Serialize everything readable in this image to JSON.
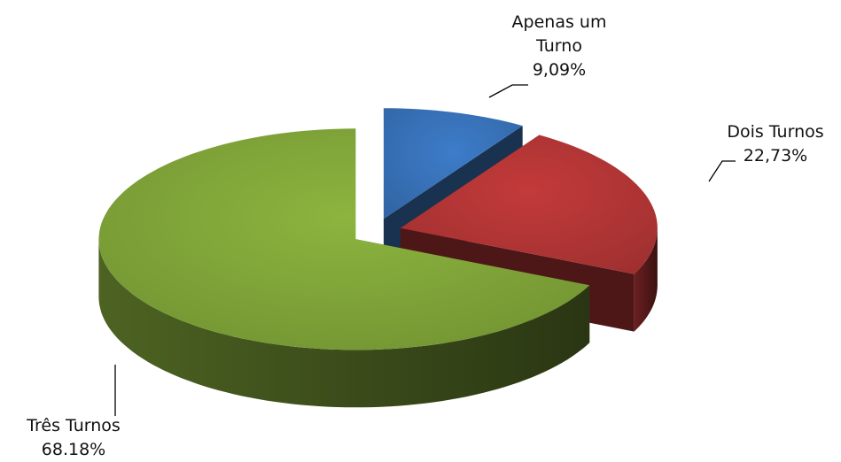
{
  "chart_data": {
    "type": "pie",
    "categories": [
      "Apenas um Turno",
      "Dois Turnos",
      "Três Turnos"
    ],
    "values": [
      9.09,
      22.73,
      68.18
    ],
    "value_labels": [
      "9,09%",
      "22,73%",
      "68.18%"
    ],
    "colors": [
      "#3d7cc9",
      "#c33a3a",
      "#8cb43e"
    ]
  }
}
